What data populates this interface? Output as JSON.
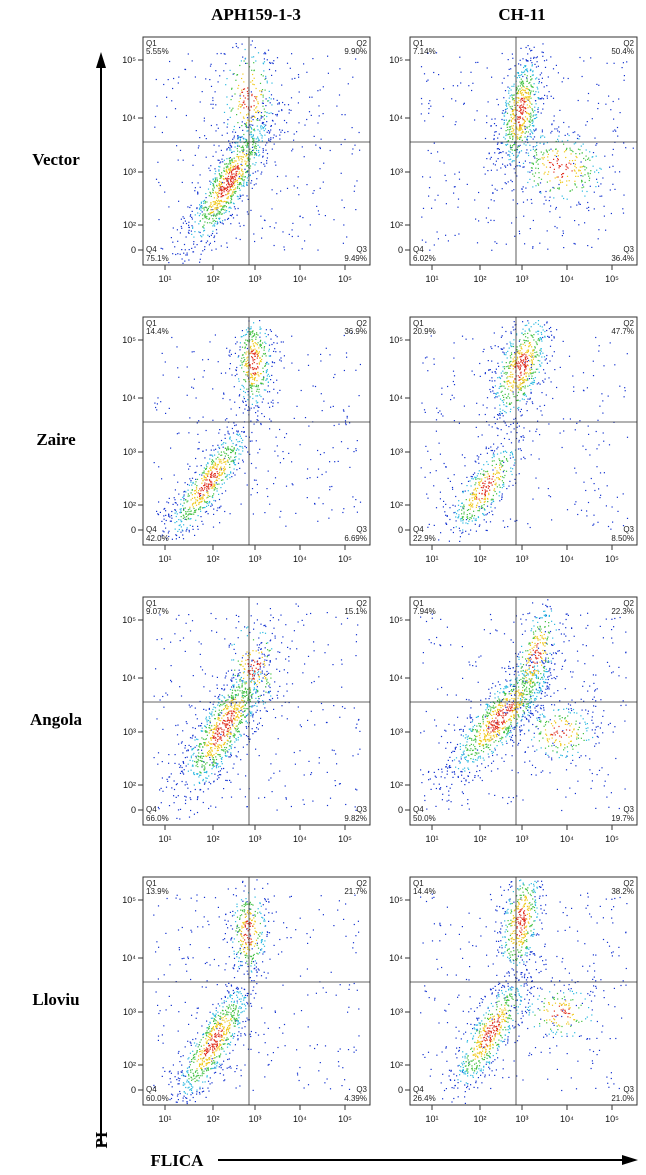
{
  "header": {
    "columns": [
      "APH159-1-3",
      "CH-11"
    ]
  },
  "axes": {
    "y_label": "PI",
    "x_label": "FLICA",
    "x_ticks": [
      "10¹",
      "10²",
      "10³",
      "10⁴",
      "10⁵"
    ],
    "y_ticks": [
      "10⁵",
      "10⁴",
      "10³",
      "10²",
      "0"
    ]
  },
  "quadrant_labels": [
    "Q1",
    "Q2",
    "Q3",
    "Q4"
  ],
  "rows": [
    {
      "label": "Vector",
      "panels": [
        {
          "q1": "5.55%",
          "q2": "9.90%",
          "q3": "9.49%",
          "q4": "75.1%"
        },
        {
          "q1": "7.14%",
          "q2": "50.4%",
          "q3": "36.4%",
          "q4": "6.02%"
        }
      ]
    },
    {
      "label": "Zaire",
      "panels": [
        {
          "q1": "14.4%",
          "q2": "36.9%",
          "q3": "6.69%",
          "q4": "42.0%"
        },
        {
          "q1": "20.9%",
          "q2": "47.7%",
          "q3": "8.50%",
          "q4": "22.9%"
        }
      ]
    },
    {
      "label": "Angola",
      "panels": [
        {
          "q1": "9.07%",
          "q2": "15.1%",
          "q3": "9.82%",
          "q4": "66.0%"
        },
        {
          "q1": "7.94%",
          "q2": "22.3%",
          "q3": "19.7%",
          "q4": "50.0%"
        }
      ]
    },
    {
      "label": "Lloviu",
      "panels": [
        {
          "q1": "13.9%",
          "q2": "21.7%",
          "q3": "4.39%",
          "q4": "60.0%"
        },
        {
          "q1": "14.4%",
          "q2": "38.2%",
          "q3": "21.0%",
          "q4": "26.4%"
        }
      ]
    }
  ]
}
